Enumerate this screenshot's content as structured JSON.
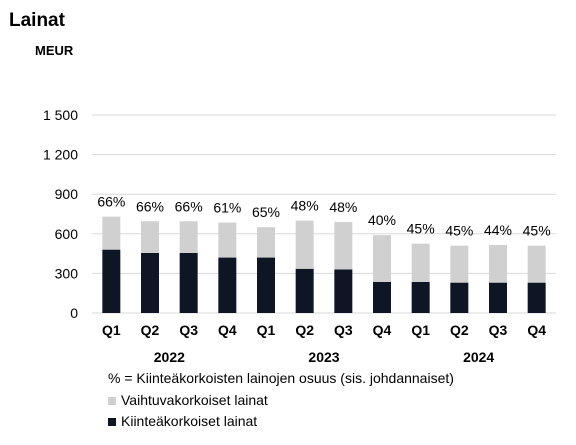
{
  "chart_data": {
    "type": "bar",
    "stacked": true,
    "title": "Lainat",
    "unit_label": "MEUR",
    "categories": [
      "Q1",
      "Q2",
      "Q3",
      "Q4",
      "Q1",
      "Q2",
      "Q3",
      "Q4",
      "Q1",
      "Q2",
      "Q3",
      "Q4"
    ],
    "year_labels": [
      {
        "label": "2022",
        "span": [
          0,
          3
        ]
      },
      {
        "label": "2023",
        "span": [
          4,
          7
        ]
      },
      {
        "label": "2024",
        "span": [
          8,
          11
        ]
      }
    ],
    "series": [
      {
        "name": "Kiinteäkorkoiset lainat",
        "color": "#0e1626",
        "values": [
          480,
          455,
          455,
          420,
          420,
          335,
          330,
          235,
          235,
          230,
          230,
          230
        ]
      },
      {
        "name": "Vaihtuvakorkoiset lainat",
        "color": "#d0d0d0",
        "values": [
          250,
          240,
          240,
          265,
          230,
          365,
          360,
          355,
          290,
          280,
          285,
          280
        ]
      }
    ],
    "percent_labels": [
      "66%",
      "66%",
      "66%",
      "61%",
      "65%",
      "48%",
      "48%",
      "40%",
      "45%",
      "45%",
      "44%",
      "45%"
    ],
    "yticks": [
      0,
      300,
      600,
      900,
      1200,
      1500
    ],
    "ytick_labels": [
      "0",
      "300",
      "600",
      "900",
      "1 200",
      "1 500"
    ],
    "ylim": [
      0,
      1500
    ],
    "grid": true,
    "legend_note": "% = Kiinteäkorkoisten lainojen osuus (sis. johdannaiset)",
    "legend_position": "bottom"
  }
}
